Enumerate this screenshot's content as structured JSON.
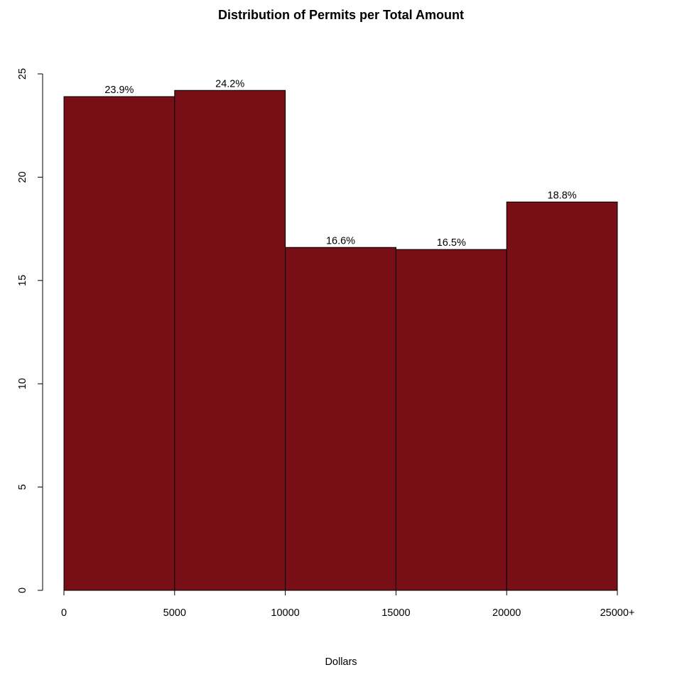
{
  "chart_data": {
    "type": "bar",
    "title": "Distribution of Permits per Total Amount",
    "xlabel": "Dollars",
    "ylabel": "",
    "bin_edges": [
      0,
      5000,
      10000,
      15000,
      20000,
      25000
    ],
    "x_tick_labels": [
      "0",
      "5000",
      "10000",
      "15000",
      "20000",
      "25000+"
    ],
    "values": [
      23.9,
      24.2,
      16.6,
      16.5,
      18.8
    ],
    "bar_labels": [
      "23.9%",
      "24.2%",
      "16.6%",
      "16.5%",
      "18.8%"
    ],
    "y_ticks": [
      0,
      5,
      10,
      15,
      20,
      25
    ],
    "y_tick_labels": [
      "0",
      "5",
      "10",
      "15",
      "20",
      "25"
    ],
    "ylim": [
      0,
      25
    ],
    "xlim": [
      0,
      25000
    ],
    "grid": false,
    "legend": "none",
    "bar_color": "#780f17",
    "bar_border_color": "#000000"
  }
}
